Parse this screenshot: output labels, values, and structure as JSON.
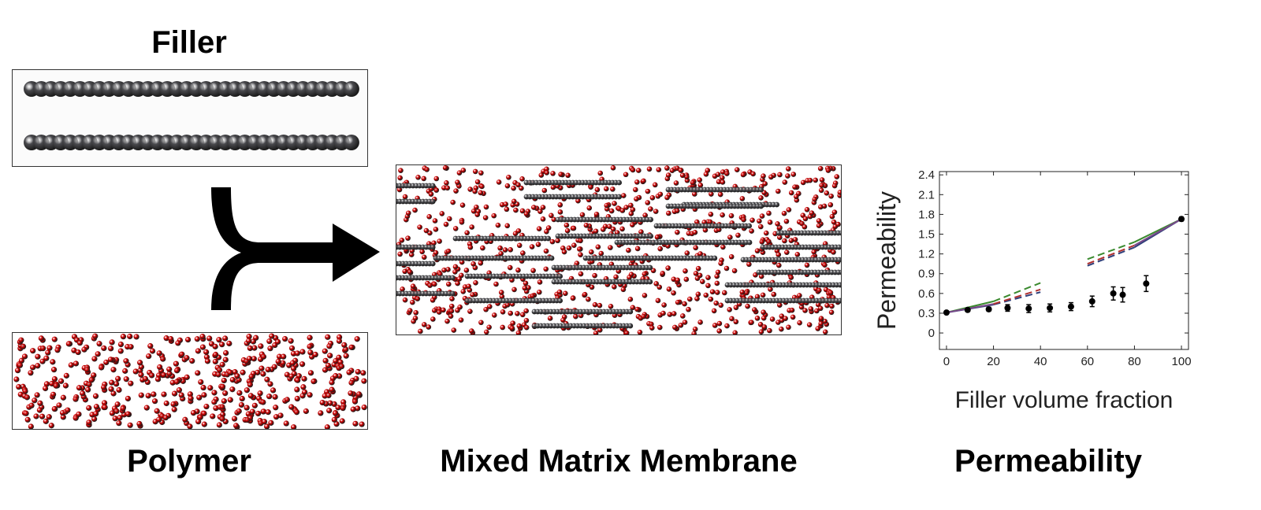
{
  "labels": {
    "filler": "Filler",
    "polymer": "Polymer",
    "mixed_matrix_membrane": "Mixed Matrix Membrane",
    "permeability": "Permeability"
  },
  "colors": {
    "filler_bead": "#4a4a4e",
    "polymer_bead": "#d40000",
    "arrow": "#000000",
    "series_green": "#3a8a2e",
    "series_blue": "#2e3f7a",
    "series_red": "#b03030",
    "series_purple": "#7a4a8a"
  },
  "chart_data": {
    "type": "scatter",
    "xlabel": "Filler volume fraction",
    "ylabel": "Permeability",
    "xlim": [
      -3,
      103
    ],
    "ylim": [
      -0.25,
      2.45
    ],
    "xticks": [
      0,
      20,
      40,
      60,
      80,
      100
    ],
    "yticks": [
      0,
      0.3,
      0.6,
      0.9,
      1.2,
      1.5,
      1.8,
      2.1,
      2.4
    ],
    "yticklabels": [
      "0",
      "0.3",
      "0.6",
      "0.9",
      "1.2",
      "1.5",
      "1.8",
      "2.1",
      "2.4"
    ],
    "measured": {
      "x": [
        0,
        9,
        18,
        26,
        35,
        44,
        53,
        62,
        71,
        75,
        85,
        100
      ],
      "y": [
        0.31,
        0.35,
        0.36,
        0.38,
        0.37,
        0.38,
        0.4,
        0.48,
        0.6,
        0.58,
        0.75,
        1.73
      ],
      "err": [
        0.02,
        0.02,
        0.03,
        0.05,
        0.06,
        0.06,
        0.06,
        0.08,
        0.1,
        0.11,
        0.12,
        0.03
      ]
    },
    "model_lines": [
      {
        "color": "#3a8a2e",
        "dash": false,
        "x": [
          0,
          20
        ],
        "y": [
          0.31,
          0.48
        ]
      },
      {
        "color": "#3a8a2e",
        "dash": true,
        "x": [
          20,
          40
        ],
        "y": [
          0.48,
          0.76
        ]
      },
      {
        "color": "#3a8a2e",
        "dash": true,
        "x": [
          60,
          80
        ],
        "y": [
          1.12,
          1.38
        ]
      },
      {
        "color": "#3a8a2e",
        "dash": false,
        "x": [
          80,
          100
        ],
        "y": [
          1.38,
          1.73
        ]
      },
      {
        "color": "#2e3f7a",
        "dash": false,
        "x": [
          0,
          20
        ],
        "y": [
          0.31,
          0.43
        ]
      },
      {
        "color": "#2e3f7a",
        "dash": true,
        "x": [
          20,
          40
        ],
        "y": [
          0.43,
          0.62
        ]
      },
      {
        "color": "#2e3f7a",
        "dash": true,
        "x": [
          60,
          80
        ],
        "y": [
          1.02,
          1.3
        ]
      },
      {
        "color": "#2e3f7a",
        "dash": false,
        "x": [
          80,
          100
        ],
        "y": [
          1.3,
          1.73
        ]
      },
      {
        "color": "#b03030",
        "dash": true,
        "x": [
          20,
          40
        ],
        "y": [
          0.44,
          0.66
        ]
      },
      {
        "color": "#b03030",
        "dash": true,
        "x": [
          60,
          80
        ],
        "y": [
          1.05,
          1.33
        ]
      },
      {
        "color": "#7a4a8a",
        "dash": false,
        "x": [
          0,
          20
        ],
        "y": [
          0.31,
          0.44
        ]
      },
      {
        "color": "#7a4a8a",
        "dash": false,
        "x": [
          80,
          100
        ],
        "y": [
          1.33,
          1.73
        ]
      }
    ]
  }
}
